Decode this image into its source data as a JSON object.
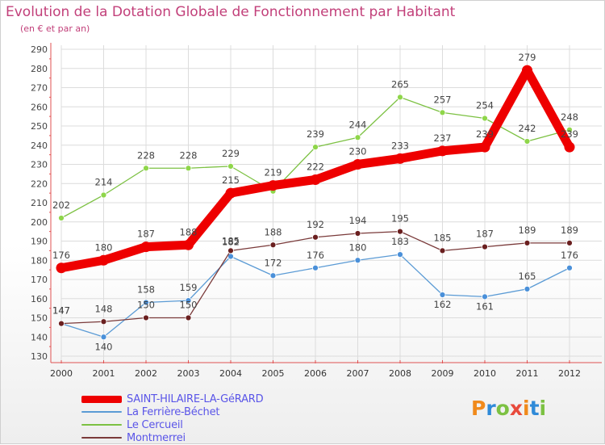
{
  "title": "Evolution de la Dotation Globale de Fonctionnement par Habitant",
  "subtitle": "(en € et par an)",
  "logo": {
    "text": "Proxiti",
    "colors": [
      "#f08a1c",
      "#2f8ad8",
      "#7cc142",
      "#e84a3c",
      "#f08a1c",
      "#2f8ad8",
      "#7cc142"
    ]
  },
  "colors": {
    "title": "#c2407a",
    "axis": "#e05252",
    "grid": "#dcdcdc",
    "legend_text": "#5a55e8"
  },
  "chart_data": {
    "type": "line",
    "x": [
      "2000",
      "2001",
      "2002",
      "2003",
      "2004",
      "2005",
      "2006",
      "2007",
      "2008",
      "2009",
      "2010",
      "2011",
      "2012"
    ],
    "ylim": [
      130,
      290
    ],
    "yticks": [
      130,
      140,
      150,
      160,
      170,
      180,
      190,
      200,
      210,
      220,
      230,
      240,
      250,
      260,
      270,
      280,
      290
    ],
    "grid": true,
    "legend_position": "bottom-left",
    "series": [
      {
        "name": "Le Cercueil",
        "color": "#7cc142",
        "marker_color": "#8fd64a",
        "values": [
          202,
          214,
          228,
          228,
          229,
          216,
          239,
          244,
          265,
          257,
          254,
          242,
          248
        ],
        "labels": [
          "202",
          "214",
          "228",
          "228",
          "229",
          "",
          "239",
          "244",
          "265",
          "257",
          "254",
          "242",
          "248"
        ]
      },
      {
        "name": "La Ferrière-Béchet",
        "color": "#5b9bd5",
        "marker_color": "#4a90d9",
        "values": [
          147,
          140,
          158,
          159,
          182,
          172,
          176,
          180,
          183,
          162,
          161,
          165,
          176
        ],
        "labels": [
          "147",
          "140",
          "158",
          "159",
          "182",
          "172",
          "176",
          "180",
          "183",
          "162",
          "161",
          "165",
          "176"
        ]
      },
      {
        "name": "Montmerrei",
        "color": "#7a3a3a",
        "marker_color": "#6a1f1f",
        "values": [
          147,
          148,
          150,
          150,
          185,
          188,
          192,
          194,
          195,
          185,
          187,
          189,
          189
        ],
        "labels": [
          "147",
          "148",
          "150",
          "150",
          "185",
          "188",
          "192",
          "194",
          "195",
          "185",
          "187",
          "189",
          "189"
        ]
      },
      {
        "name": "SAINT-HILAIRE-LA-GéRARD",
        "color": "#ee0000",
        "marker_color": "#ee0000",
        "values": [
          176,
          180,
          187,
          188,
          215,
          219,
          222,
          230,
          233,
          237,
          239,
          279,
          239
        ],
        "labels": [
          "176",
          "180",
          "187",
          "188",
          "215",
          "219",
          "222",
          "230",
          "233",
          "237",
          "239",
          "279",
          "239"
        ]
      }
    ],
    "legend_order": [
      "SAINT-HILAIRE-LA-GéRARD",
      "La Ferrière-Béchet",
      "Le Cercueil",
      "Montmerrei"
    ]
  }
}
